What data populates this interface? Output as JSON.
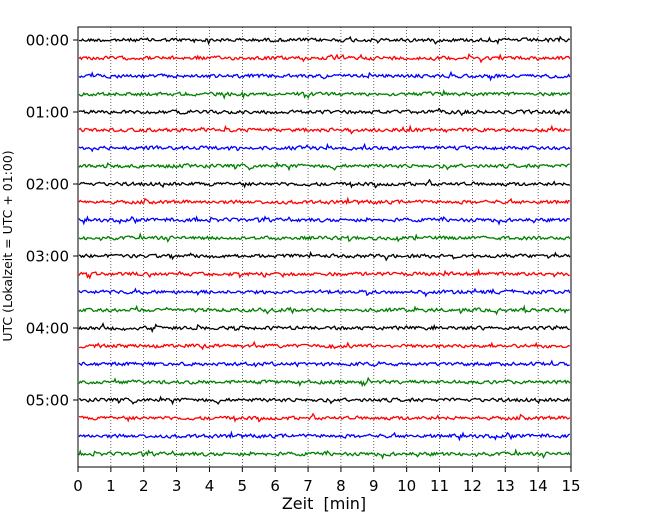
{
  "chart_data": {
    "type": "line",
    "subtype": "helicorder",
    "title": "",
    "xlabel": "Zeit  [min]",
    "ylabel": "UTC (Lokalzeit = UTC + 01:00)",
    "xlim": [
      0,
      15
    ],
    "x_ticks": [
      0,
      1,
      2,
      3,
      4,
      5,
      6,
      7,
      8,
      9,
      10,
      11,
      12,
      13,
      14,
      15
    ],
    "x_tick_labels": [
      "0",
      "1",
      "2",
      "3",
      "4",
      "5",
      "6",
      "7",
      "8",
      "9",
      "10",
      "11",
      "12",
      "13",
      "14",
      "15"
    ],
    "y_ticks": [
      {
        "label": "00:00",
        "trace_index": 0
      },
      {
        "label": "01:00",
        "trace_index": 4
      },
      {
        "label": "02:00",
        "trace_index": 8
      },
      {
        "label": "03:00",
        "trace_index": 12
      },
      {
        "label": "04:00",
        "trace_index": 16
      },
      {
        "label": "05:00",
        "trace_index": 20
      }
    ],
    "grid": {
      "vertical": true,
      "horizontal": false,
      "style": "dotted"
    },
    "line_interval_minutes": 15,
    "color_cycle": [
      "#000000",
      "#ff0000",
      "#0000ff",
      "#008000"
    ],
    "series": [
      {
        "start": "00:00",
        "color": "#000000"
      },
      {
        "start": "00:15",
        "color": "#ff0000"
      },
      {
        "start": "00:30",
        "color": "#0000ff"
      },
      {
        "start": "00:45",
        "color": "#008000"
      },
      {
        "start": "01:00",
        "color": "#000000"
      },
      {
        "start": "01:15",
        "color": "#ff0000"
      },
      {
        "start": "01:30",
        "color": "#0000ff"
      },
      {
        "start": "01:45",
        "color": "#008000"
      },
      {
        "start": "02:00",
        "color": "#000000"
      },
      {
        "start": "02:15",
        "color": "#ff0000"
      },
      {
        "start": "02:30",
        "color": "#0000ff"
      },
      {
        "start": "02:45",
        "color": "#008000"
      },
      {
        "start": "03:00",
        "color": "#000000"
      },
      {
        "start": "03:15",
        "color": "#ff0000"
      },
      {
        "start": "03:30",
        "color": "#0000ff"
      },
      {
        "start": "03:45",
        "color": "#008000"
      },
      {
        "start": "04:00",
        "color": "#000000"
      },
      {
        "start": "04:15",
        "color": "#ff0000"
      },
      {
        "start": "04:30",
        "color": "#0000ff"
      },
      {
        "start": "04:45",
        "color": "#008000"
      },
      {
        "start": "05:00",
        "color": "#000000"
      },
      {
        "start": "05:15",
        "color": "#ff0000"
      },
      {
        "start": "05:30",
        "color": "#0000ff"
      },
      {
        "start": "05:45",
        "color": "#008000"
      }
    ]
  }
}
